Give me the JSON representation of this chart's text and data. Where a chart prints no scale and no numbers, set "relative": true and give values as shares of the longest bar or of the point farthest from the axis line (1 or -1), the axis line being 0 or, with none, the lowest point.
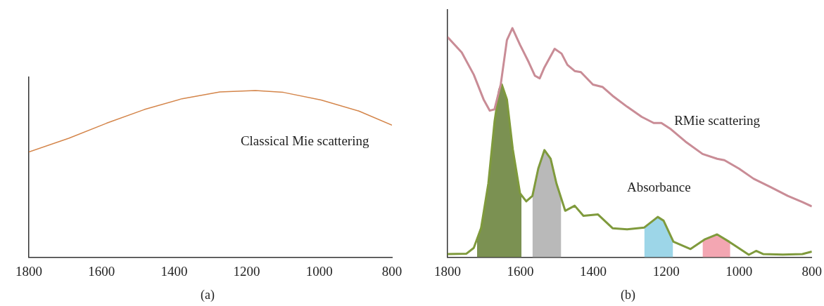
{
  "chart_data": [
    {
      "type": "line",
      "title": "(a)",
      "relative": true,
      "legend": false,
      "xlim": [
        1800,
        800
      ],
      "xticks": [
        1800,
        1600,
        1400,
        1200,
        1000,
        800
      ],
      "series": [
        {
          "name": "Classical Mie scattering",
          "color": "#d4854a",
          "x": [
            1800,
            1690,
            1586,
            1482,
            1378,
            1274,
            1176,
            1099,
            995,
            891,
            800
          ],
          "values": [
            0.632,
            0.714,
            0.804,
            0.886,
            0.951,
            0.992,
            1.0,
            0.989,
            0.943,
            0.877,
            0.792
          ]
        }
      ]
    },
    {
      "type": "line",
      "title": "(b)",
      "relative": true,
      "legend": false,
      "xlim": [
        1800,
        800
      ],
      "xticks": [
        1800,
        1600,
        1400,
        1200,
        1000,
        800
      ],
      "series": [
        {
          "type": "area",
          "color": "#7b9152",
          "x": [
            1719,
            1708,
            1688,
            1671,
            1658,
            1651,
            1637,
            1621,
            1601,
            1597
          ],
          "values": [
            0.07,
            0.127,
            0.322,
            0.592,
            0.732,
            0.754,
            0.689,
            0.473,
            0.279,
            0.27
          ]
        },
        {
          "type": "area",
          "color": "#b9b9b9",
          "x": [
            1567,
            1551,
            1534,
            1517,
            1501,
            1488
          ],
          "values": [
            0.268,
            0.387,
            0.468,
            0.43,
            0.322,
            0.26
          ]
        },
        {
          "type": "area",
          "color": "#9dd6e8",
          "x": [
            1260,
            1223,
            1207,
            1181
          ],
          "values": [
            0.13,
            0.176,
            0.16,
            0.07
          ]
        },
        {
          "type": "area",
          "color": "#f3a6b2",
          "x": [
            1100,
            1093,
            1060,
            1027,
            1024
          ],
          "values": [
            0.07,
            0.079,
            0.1,
            0.068,
            0.065
          ]
        },
        {
          "name": "RMie scattering",
          "color": "#c98c96",
          "x": [
            1800,
            1761,
            1728,
            1701,
            1684,
            1671,
            1654,
            1637,
            1622,
            1601,
            1577,
            1560,
            1547,
            1534,
            1506,
            1487,
            1471,
            1451,
            1434,
            1401,
            1374,
            1347,
            1307,
            1267,
            1234,
            1213,
            1187,
            1147,
            1100,
            1060,
            1040,
            1000,
            960,
            913,
            866,
            826,
            800
          ],
          "values": [
            0.961,
            0.894,
            0.797,
            0.689,
            0.64,
            0.646,
            0.754,
            0.948,
            1.0,
            0.927,
            0.851,
            0.792,
            0.781,
            0.829,
            0.91,
            0.889,
            0.84,
            0.813,
            0.808,
            0.754,
            0.743,
            0.705,
            0.657,
            0.613,
            0.586,
            0.586,
            0.559,
            0.505,
            0.451,
            0.43,
            0.424,
            0.387,
            0.343,
            0.306,
            0.268,
            0.241,
            0.222
          ]
        },
        {
          "name": "Absorbance",
          "color": "#7f9a3c",
          "x": [
            1800,
            1748,
            1728,
            1708,
            1688,
            1671,
            1658,
            1651,
            1637,
            1621,
            1601,
            1584,
            1567,
            1551,
            1534,
            1517,
            1501,
            1477,
            1451,
            1427,
            1387,
            1347,
            1307,
            1260,
            1223,
            1207,
            1180,
            1133,
            1093,
            1060,
            1027,
            997,
            973,
            953,
            933,
            880,
            826,
            800
          ],
          "values": [
            0.014,
            0.016,
            0.041,
            0.127,
            0.322,
            0.592,
            0.732,
            0.754,
            0.689,
            0.473,
            0.279,
            0.244,
            0.268,
            0.387,
            0.468,
            0.43,
            0.322,
            0.203,
            0.225,
            0.181,
            0.187,
            0.127,
            0.122,
            0.13,
            0.176,
            0.16,
            0.068,
            0.036,
            0.079,
            0.1,
            0.068,
            0.036,
            0.011,
            0.028,
            0.014,
            0.012,
            0.014,
            0.025
          ]
        }
      ]
    }
  ]
}
